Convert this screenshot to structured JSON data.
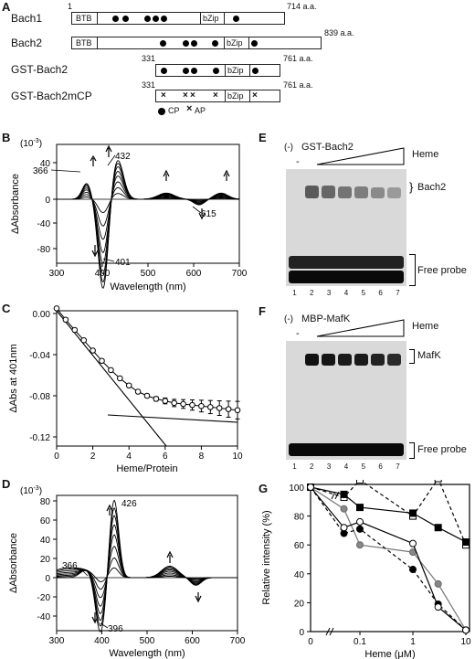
{
  "panels": {
    "A": "A",
    "B": "B",
    "C": "C",
    "D": "D",
    "E": "E",
    "F": "F",
    "G": "G"
  },
  "panel_a": {
    "rows": [
      {
        "name": "Bach1",
        "start": "1",
        "end": "714 a.a.",
        "btb": "BTB",
        "bzip": "bZip"
      },
      {
        "name": "Bach2",
        "start": "",
        "end": "839 a.a.",
        "btb": "BTB",
        "bzip": "bZip"
      },
      {
        "name": "GST-Bach2",
        "start": "331",
        "end": "761 a.a.",
        "btb": "",
        "bzip": "bZip"
      },
      {
        "name": "GST-Bach2mCP",
        "start": "331",
        "end": "761 a.a.",
        "btb": "",
        "bzip": "bZip"
      }
    ],
    "legend_cp": "CP",
    "legend_ap": "AP"
  },
  "panel_b": {
    "exp": "(10",
    "exp_sup": "-3",
    "exp_close": ")",
    "ylabel": "ΔAbsorbance",
    "xlabel": "Wavelength (nm)",
    "yticks": [
      "40",
      "0",
      "-40",
      "-80"
    ],
    "xticks": [
      "300",
      "400",
      "500",
      "600",
      "700"
    ],
    "annotations": [
      "366",
      "432",
      "615",
      "401"
    ]
  },
  "panel_c": {
    "ylabel": "ΔAbs at 401nm",
    "xlabel": "Heme/Protein",
    "yticks": [
      "0.00",
      "-0.04",
      "-0.08",
      "-0.12"
    ],
    "xticks": [
      "0",
      "2",
      "4",
      "6",
      "8",
      "10"
    ]
  },
  "panel_d": {
    "exp": "(10",
    "exp_sup": "-3",
    "exp_close": ")",
    "ylabel": "ΔAbsorbance",
    "xlabel": "Wavelength (nm)",
    "yticks": [
      "80",
      "60",
      "40",
      "20",
      "0",
      "-20",
      "-40"
    ],
    "xticks": [
      "300",
      "400",
      "500",
      "600",
      "700"
    ],
    "annotations": [
      "426",
      "366",
      "396"
    ]
  },
  "panel_e": {
    "neg": "(-)",
    "title": "GST-Bach2",
    "dash": "-",
    "heme": "Heme",
    "band1": "Bach2",
    "band2": "Free probe",
    "lanes": [
      "1",
      "2",
      "3",
      "4",
      "5",
      "6",
      "7"
    ]
  },
  "panel_f": {
    "neg": "(-)",
    "title": "MBP-MafK",
    "dash": "-",
    "heme": "Heme",
    "band1": "MafK",
    "band2": "Free probe",
    "lanes": [
      "1",
      "2",
      "3",
      "4",
      "5",
      "6",
      "7"
    ]
  },
  "panel_g": {
    "ylabel": "Relative intensity (%)",
    "xlabel": "Heme (μM)",
    "yticks": [
      "100",
      "80",
      "60",
      "40",
      "20",
      "0"
    ],
    "xticks": [
      "0",
      "0.1",
      "1",
      "10"
    ]
  },
  "chart_data": [
    {
      "type": "line",
      "panel": "G",
      "xlabel": "Heme (μM)",
      "ylabel": "Relative intensity (%)",
      "x": [
        0,
        0.05,
        0.1,
        1,
        3,
        10
      ],
      "xscale": "log (with 0 and axis break)",
      "ylim": [
        0,
        105
      ],
      "series": [
        {
          "marker": "open-square",
          "line": "dashed",
          "values": [
            100,
            93,
            105,
            80,
            106,
            60
          ]
        },
        {
          "marker": "filled-square",
          "line": "solid",
          "values": [
            100,
            95,
            86,
            82,
            72,
            62
          ]
        },
        {
          "marker": "gray-circle",
          "line": "solid",
          "values": [
            100,
            85,
            60,
            55,
            33,
            1
          ]
        },
        {
          "marker": "filled-circle",
          "line": "dashed",
          "values": [
            100,
            68,
            71,
            43,
            19,
            1
          ]
        },
        {
          "marker": "open-circle",
          "line": "solid",
          "values": [
            100,
            72,
            76,
            61,
            17,
            1
          ]
        }
      ]
    },
    {
      "type": "line",
      "panel": "C",
      "xlabel": "Heme/Protein",
      "ylabel": "ΔAbs at 401nm",
      "xlim": [
        0,
        10
      ],
      "ylim": [
        -0.12,
        0.01
      ],
      "series": [
        {
          "marker": "open-circle",
          "x": [
            0,
            0.5,
            1,
            1.5,
            2,
            2.5,
            3,
            3.5,
            4,
            4.5,
            5,
            5.5,
            6,
            6.5,
            7,
            7.5,
            8,
            8.5,
            9,
            9.5,
            10
          ],
          "values": [
            0.005,
            -0.006,
            -0.016,
            -0.026,
            -0.036,
            -0.046,
            -0.055,
            -0.063,
            -0.07,
            -0.076,
            -0.08,
            -0.083,
            -0.085,
            -0.087,
            -0.088,
            -0.089,
            -0.09,
            -0.091,
            -0.092,
            -0.093,
            -0.094
          ]
        }
      ]
    }
  ]
}
